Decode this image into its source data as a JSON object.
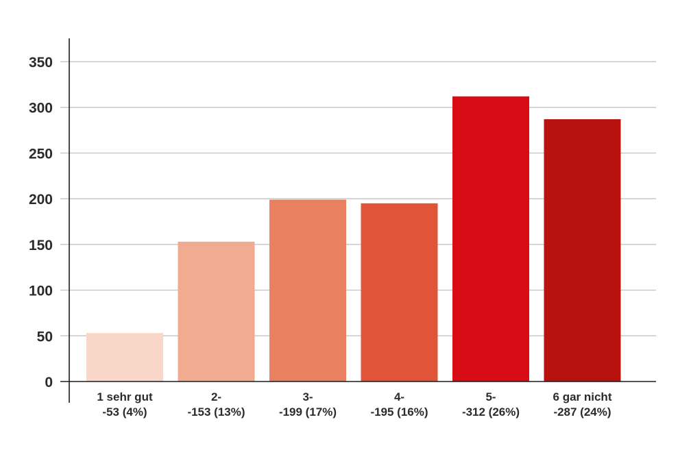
{
  "chart_data": {
    "type": "bar",
    "title": "",
    "xlabel": "",
    "ylabel": "",
    "ylim": [
      0,
      370
    ],
    "yticks": [
      0,
      50,
      100,
      150,
      200,
      250,
      300,
      350
    ],
    "grid": true,
    "categories": [
      [
        "1 sehr gut",
        "-53 (4%)"
      ],
      [
        "2-",
        "-153 (13%)"
      ],
      [
        "3-",
        "-199 (17%)"
      ],
      [
        "4-",
        "-195 (16%)"
      ],
      [
        "5-",
        "-312 (26%)"
      ],
      [
        "6 gar nicht",
        "-287 (24%)"
      ]
    ],
    "values": [
      53,
      153,
      199,
      195,
      312,
      287
    ],
    "colors": [
      "#f8d6c8",
      "#f0ab90",
      "#e98060",
      "#e05538",
      "#d80c14",
      "#b8120e"
    ]
  }
}
